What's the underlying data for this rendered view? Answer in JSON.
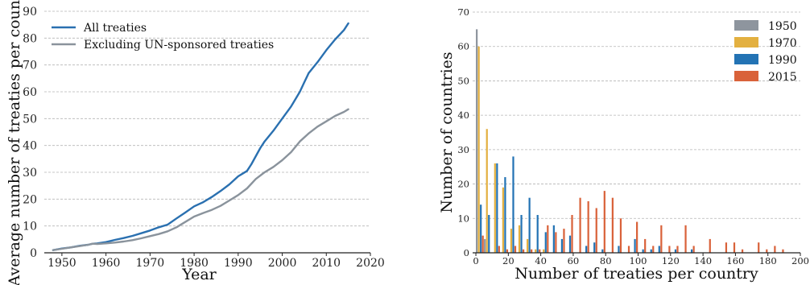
{
  "chart_data": [
    {
      "type": "line",
      "xlabel": "Year",
      "ylabel": "Average number of treaties per country",
      "xlim": [
        1946,
        2020
      ],
      "ylim": [
        0,
        90
      ],
      "xticks": [
        1950,
        1960,
        1970,
        1980,
        1990,
        2000,
        2010,
        2020
      ],
      "yticks": [
        0,
        10,
        20,
        30,
        40,
        50,
        60,
        70,
        80,
        90
      ],
      "grid": "horizontal dashed",
      "legend_position": "top-left",
      "series": [
        {
          "name": "All treaties",
          "color": "#2a70b0",
          "x": [
            1948,
            1950,
            1952,
            1954,
            1956,
            1957,
            1958,
            1960,
            1962,
            1964,
            1966,
            1968,
            1970,
            1972,
            1974,
            1976,
            1978,
            1980,
            1982,
            1984,
            1986,
            1988,
            1990,
            1991,
            1992,
            1993,
            1994,
            1995,
            1996,
            1998,
            2000,
            2002,
            2004,
            2005,
            2006,
            2008,
            2010,
            2012,
            2014,
            2015
          ],
          "y": [
            1,
            1.6,
            2,
            2.6,
            3,
            3.4,
            3.5,
            4,
            4.8,
            5.5,
            6.3,
            7.3,
            8.3,
            9.5,
            10.5,
            12.8,
            15,
            17.3,
            18.8,
            20.8,
            23,
            25.5,
            28.5,
            29.5,
            30.5,
            33,
            36,
            39,
            41.5,
            45.5,
            50,
            54.5,
            60,
            63.5,
            67,
            71,
            75.5,
            79.5,
            83,
            85.5
          ]
        },
        {
          "name": "Excluding UN-sponsored treaties",
          "color": "#8a939c",
          "x": [
            1948,
            1950,
            1952,
            1954,
            1956,
            1957,
            1958,
            1960,
            1962,
            1964,
            1966,
            1968,
            1970,
            1972,
            1974,
            1976,
            1978,
            1980,
            1982,
            1984,
            1986,
            1988,
            1990,
            1992,
            1994,
            1996,
            1998,
            2000,
            2002,
            2004,
            2006,
            2008,
            2010,
            2012,
            2014,
            2015
          ],
          "y": [
            1,
            1.5,
            2,
            2.5,
            3,
            3.4,
            3.3,
            3.5,
            3.8,
            4.2,
            4.7,
            5.4,
            6.2,
            7,
            8,
            9.5,
            11.5,
            13.5,
            14.8,
            16,
            17.5,
            19.5,
            21.5,
            24,
            27.5,
            30,
            32,
            34.5,
            37.5,
            41.5,
            44.5,
            47,
            49,
            51,
            52.5,
            53.5
          ]
        }
      ]
    },
    {
      "type": "bar",
      "xlabel": "Number of treaties per country",
      "ylabel": "Number of countries",
      "xlim": [
        -2,
        200
      ],
      "ylim": [
        0,
        70
      ],
      "xticks": [
        0,
        20,
        40,
        60,
        80,
        100,
        120,
        140,
        160,
        180,
        200
      ],
      "yticks": [
        0,
        10,
        20,
        30,
        40,
        50,
        60,
        70
      ],
      "bin_width": 5,
      "grid": "horizontal dashed",
      "legend_position": "top-right",
      "bins": [
        0,
        5,
        10,
        15,
        20,
        25,
        30,
        35,
        40,
        45,
        50,
        55,
        60,
        65,
        70,
        75,
        80,
        85,
        90,
        95,
        100,
        105,
        110,
        115,
        120,
        125,
        130,
        135,
        140,
        145,
        150,
        155,
        160,
        165,
        170,
        175,
        180,
        185
      ],
      "series": [
        {
          "name": "1950",
          "color": "#8e959e",
          "values": [
            65,
            4,
            0,
            0,
            0,
            0,
            0,
            0,
            0,
            0,
            0,
            0,
            0,
            0,
            0,
            0,
            0,
            0,
            0,
            0,
            0,
            0,
            0,
            0,
            0,
            0,
            0,
            0,
            0,
            0,
            0,
            0,
            0,
            0,
            0,
            0,
            0,
            0
          ]
        },
        {
          "name": "1970",
          "color": "#e3b040",
          "values": [
            60,
            36,
            26,
            19,
            7,
            8,
            4,
            1,
            1,
            0,
            0,
            0,
            0,
            0,
            0,
            0,
            0,
            0,
            0,
            0,
            0,
            0,
            0,
            0,
            0,
            0,
            0,
            0,
            0,
            0,
            0,
            0,
            0,
            0,
            0,
            0,
            0,
            0
          ]
        },
        {
          "name": "1990",
          "color": "#2373b4",
          "values": [
            14,
            11,
            26,
            22,
            28,
            11,
            16,
            11,
            6,
            8,
            4,
            5,
            0,
            2,
            3,
            1,
            0,
            2,
            0,
            4,
            1,
            1,
            2,
            0,
            1,
            0,
            1,
            0,
            0,
            0,
            0,
            0,
            0,
            0,
            0,
            0,
            0,
            0
          ]
        },
        {
          "name": "2015",
          "color": "#d9623a",
          "values": [
            5,
            0,
            2,
            1,
            2,
            1,
            1,
            1,
            8,
            6,
            7,
            11,
            16,
            15,
            13,
            18,
            16,
            10,
            2,
            9,
            4,
            2,
            8,
            2,
            2,
            8,
            2,
            0,
            4,
            0,
            3,
            3,
            1,
            0,
            3,
            1,
            2,
            1
          ]
        }
      ]
    }
  ]
}
